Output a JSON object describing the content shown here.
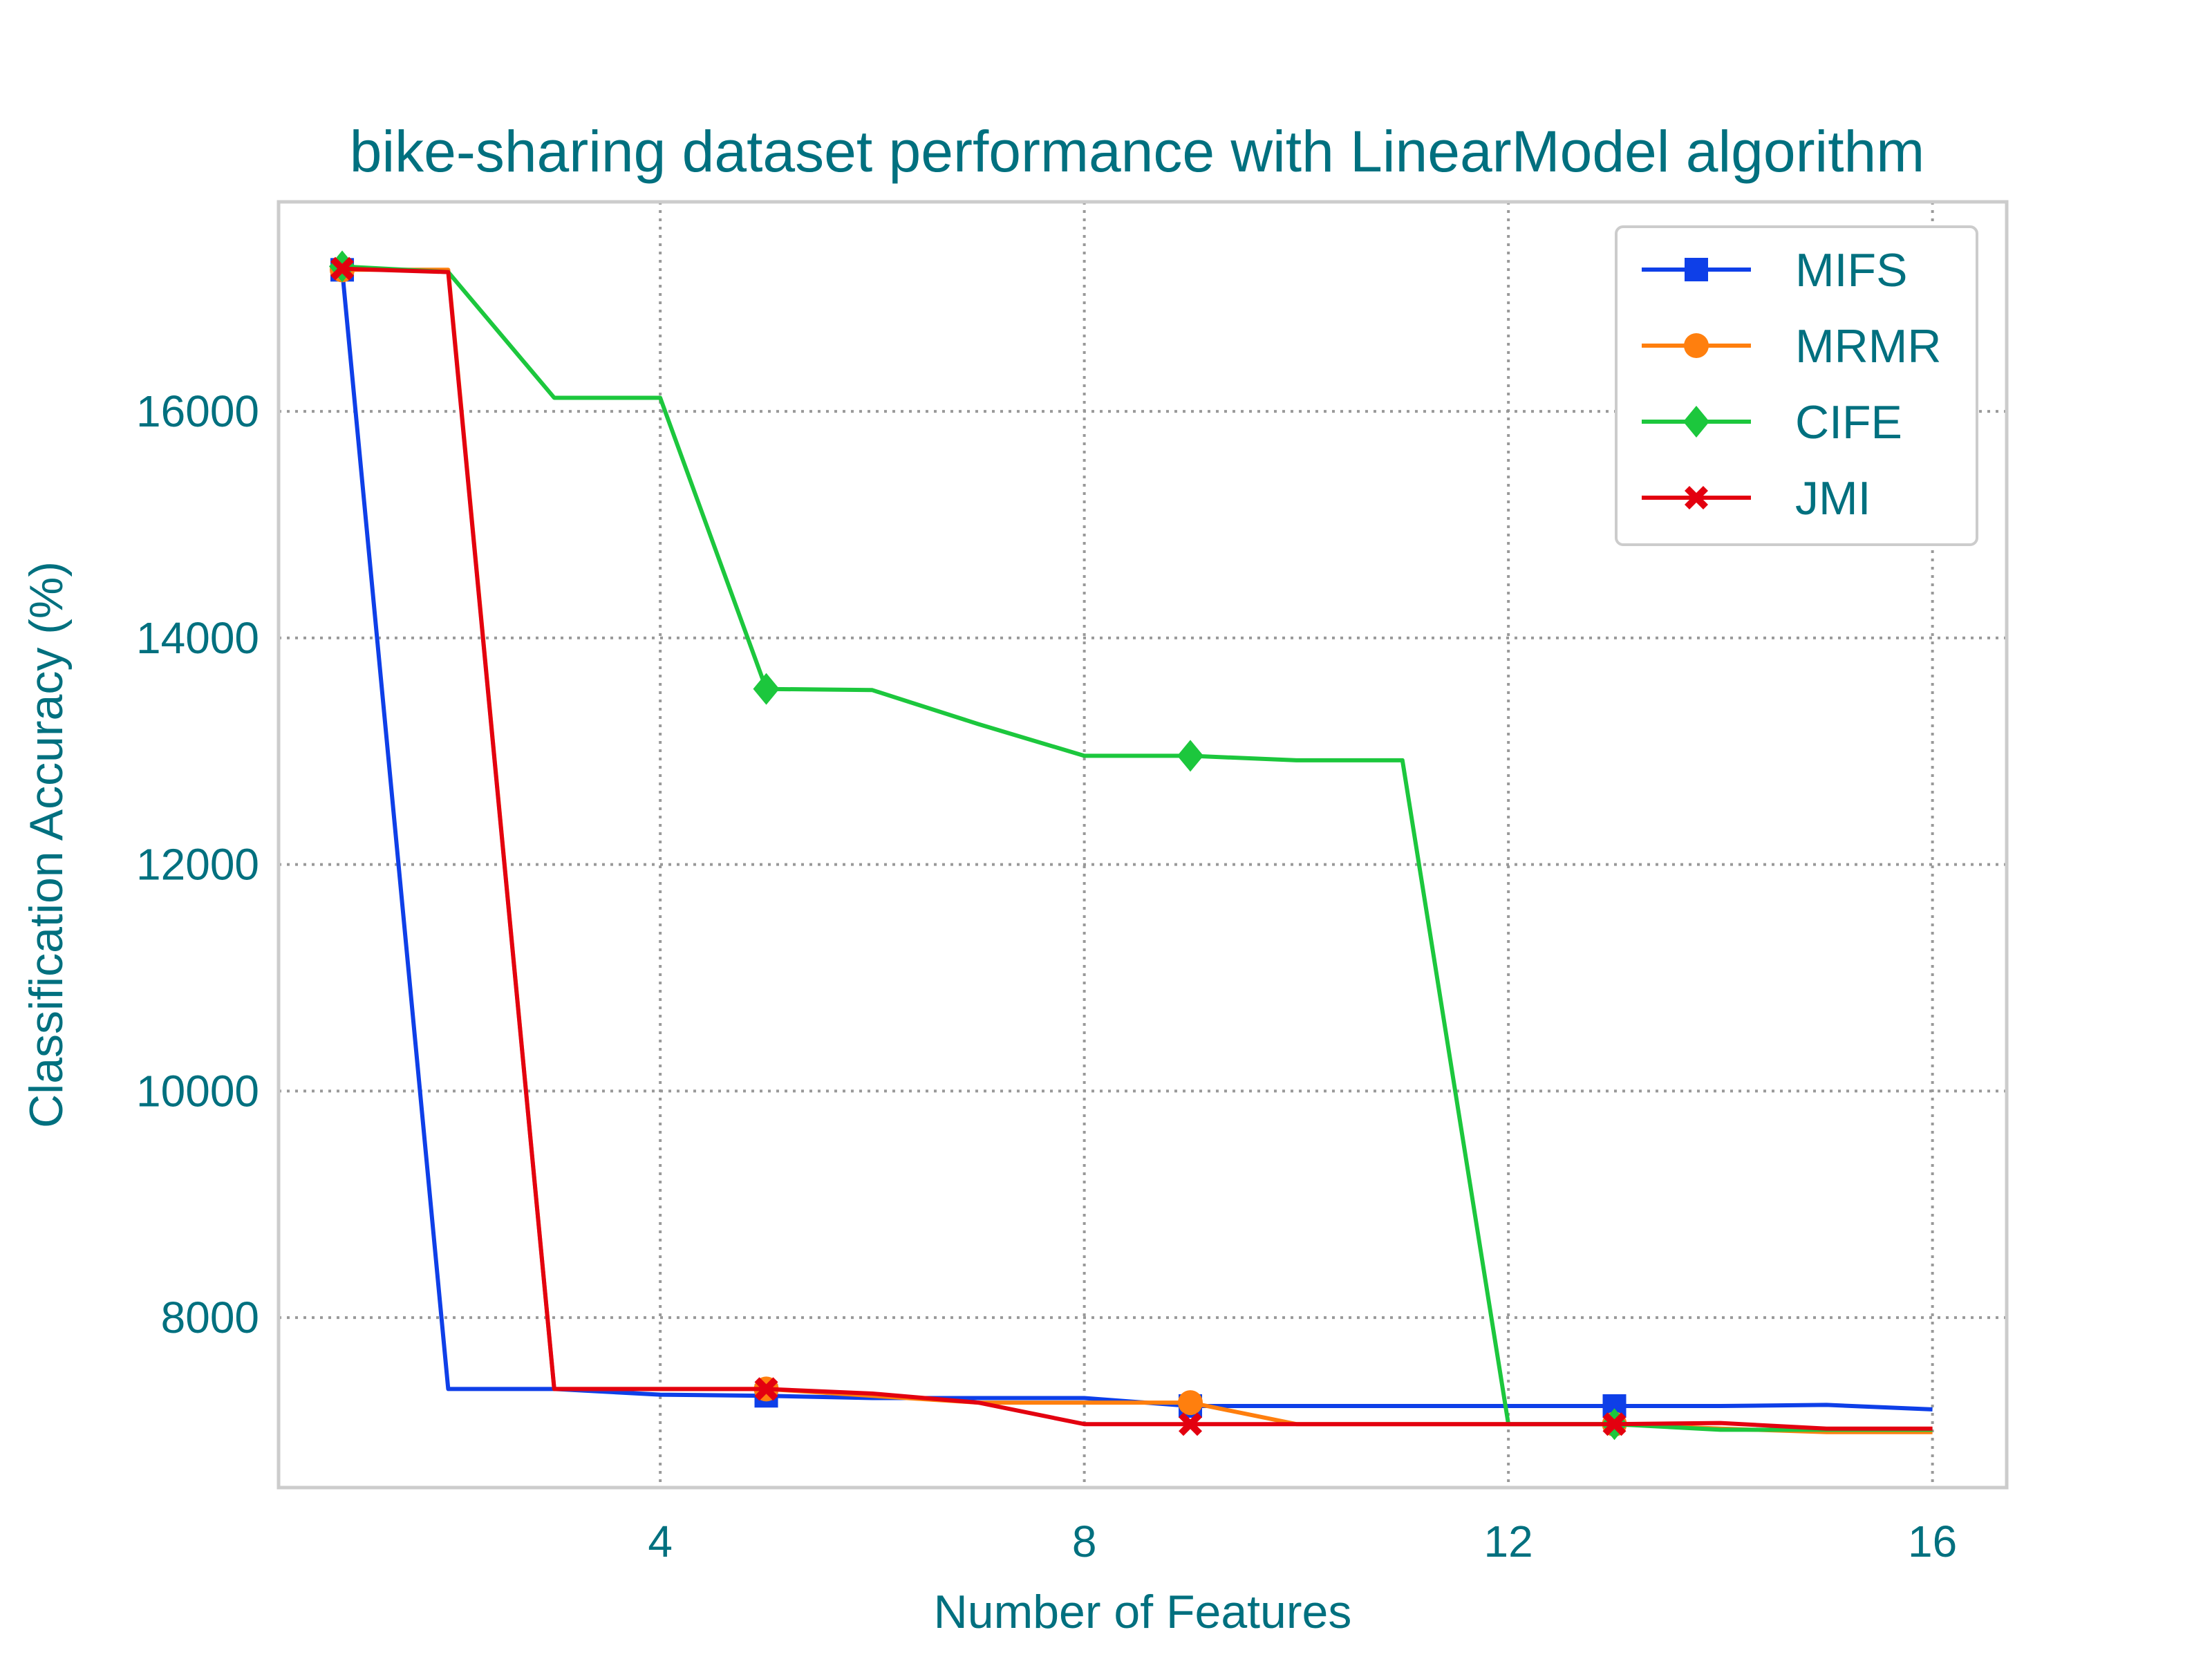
{
  "chart_data": {
    "type": "line",
    "title": "bike-sharing dataset performance with LinearModel algorithm",
    "xlabel": "Number of Features",
    "ylabel": "Classification Accuracy (%)",
    "xlim": [
      0.4,
      16.7
    ],
    "ylim": [
      6500,
      17850
    ],
    "xticks": [
      4,
      8,
      12,
      16
    ],
    "yticks": [
      8000,
      10000,
      12000,
      14000,
      16000
    ],
    "grid": true,
    "legend_position": "top-right",
    "x": [
      1,
      2,
      3,
      4,
      5,
      6,
      7,
      8,
      9,
      10,
      11,
      12,
      13,
      14,
      15,
      16
    ],
    "series": [
      {
        "name": "MIFS",
        "color": "#0e3fe8",
        "marker": "square",
        "marker_every": [
          1,
          5,
          9,
          13
        ],
        "values": [
          17250,
          7370,
          7370,
          7320,
          7310,
          7290,
          7290,
          7290,
          7220,
          7220,
          7220,
          7220,
          7220,
          7220,
          7230,
          7190
        ]
      },
      {
        "name": "MRMR",
        "color": "#ff7f0e",
        "marker": "circle",
        "marker_every": [
          1,
          5,
          9,
          13
        ],
        "values": [
          17250,
          17250,
          7370,
          7370,
          7370,
          7310,
          7250,
          7250,
          7250,
          7060,
          7060,
          7060,
          7060,
          7020,
          6990,
          6990
        ]
      },
      {
        "name": "CIFE",
        "color": "#1cc73d",
        "marker": "diamond",
        "marker_every": [
          1,
          5,
          9,
          13
        ],
        "values": [
          17280,
          17230,
          16120,
          16120,
          13550,
          13540,
          13240,
          12960,
          12960,
          12920,
          12920,
          7060,
          7060,
          7010,
          7010,
          7010
        ]
      },
      {
        "name": "JMI",
        "color": "#e3000f",
        "marker": "x",
        "marker_every": [
          1,
          5,
          9,
          13
        ],
        "values": [
          17260,
          17230,
          7370,
          7370,
          7370,
          7330,
          7250,
          7060,
          7060,
          7060,
          7060,
          7060,
          7060,
          7070,
          7020,
          7020
        ]
      }
    ]
  }
}
